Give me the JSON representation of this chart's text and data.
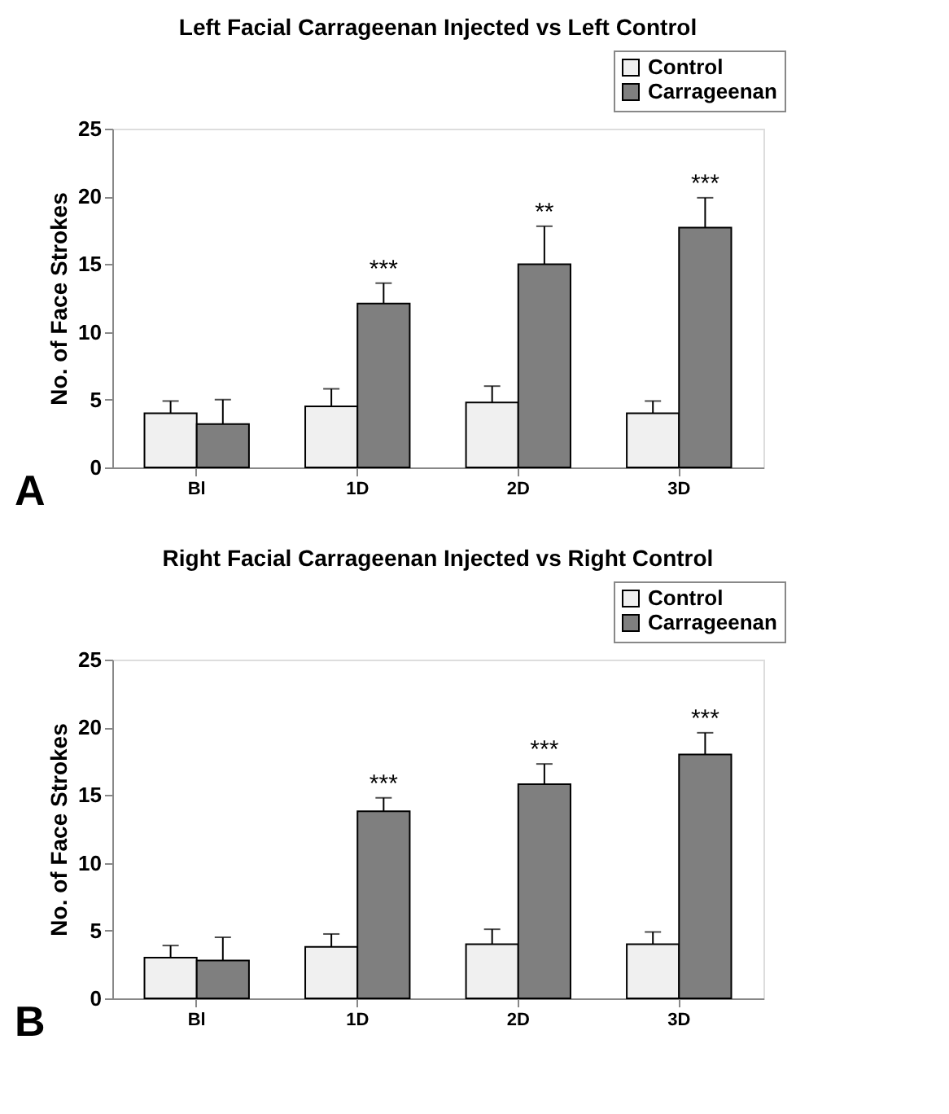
{
  "chart_data": [
    {
      "type": "bar",
      "title": "Left Facial Carrageenan Injected vs Left Control",
      "ylabel": "No. of Face Strokes",
      "categories": [
        "Bl",
        "1D",
        "2D",
        "3D"
      ],
      "series": [
        {
          "name": "Control",
          "color": "#f0f0f0",
          "values": [
            4.0,
            4.5,
            4.8,
            4.0
          ],
          "errors": [
            [
              4.0,
              4.9
            ],
            [
              4.5,
              5.8
            ],
            [
              4.8,
              6.0
            ],
            [
              4.0,
              4.9
            ]
          ]
        },
        {
          "name": "Carrageenan",
          "color": "#7f7f7f",
          "values": [
            3.2,
            12.1,
            15.0,
            17.7
          ],
          "errors": [
            [
              3.2,
              5.0
            ],
            [
              12.1,
              13.6
            ],
            [
              15.0,
              17.8
            ],
            [
              17.7,
              19.9
            ]
          ],
          "value_labels": [
            null,
            "***",
            "**",
            "***"
          ]
        }
      ],
      "ylim": [
        0,
        25
      ],
      "yticks": [
        0,
        5,
        10,
        15,
        20,
        25
      ],
      "grid": false,
      "legend": "top right",
      "annotations": [
        "A"
      ]
    },
    {
      "type": "bar",
      "title": "Right Facial Carrageenan Injected vs Right Control",
      "ylabel": "No. of Face Strokes",
      "categories": [
        "Bl",
        "1D",
        "2D",
        "3D"
      ],
      "series": [
        {
          "name": "Control",
          "color": "#f0f0f0",
          "values": [
            3.0,
            3.8,
            4.0,
            4.0
          ],
          "errors": [
            [
              3.0,
              3.9
            ],
            [
              3.8,
              4.75
            ],
            [
              4.0,
              5.1
            ],
            [
              4.0,
              4.9
            ]
          ]
        },
        {
          "name": "Carrageenan",
          "color": "#7f7f7f",
          "values": [
            2.8,
            13.8,
            15.8,
            18.0
          ],
          "errors": [
            [
              2.8,
              4.5
            ],
            [
              13.8,
              14.8
            ],
            [
              15.8,
              17.3
            ],
            [
              18.0,
              19.6
            ]
          ],
          "value_labels": [
            null,
            "***",
            "***",
            "***"
          ]
        }
      ],
      "ylim": [
        0,
        25
      ],
      "yticks": [
        0,
        5,
        10,
        15,
        20,
        25
      ],
      "grid": false,
      "legend": "top right",
      "annotations": [
        "B"
      ]
    }
  ]
}
